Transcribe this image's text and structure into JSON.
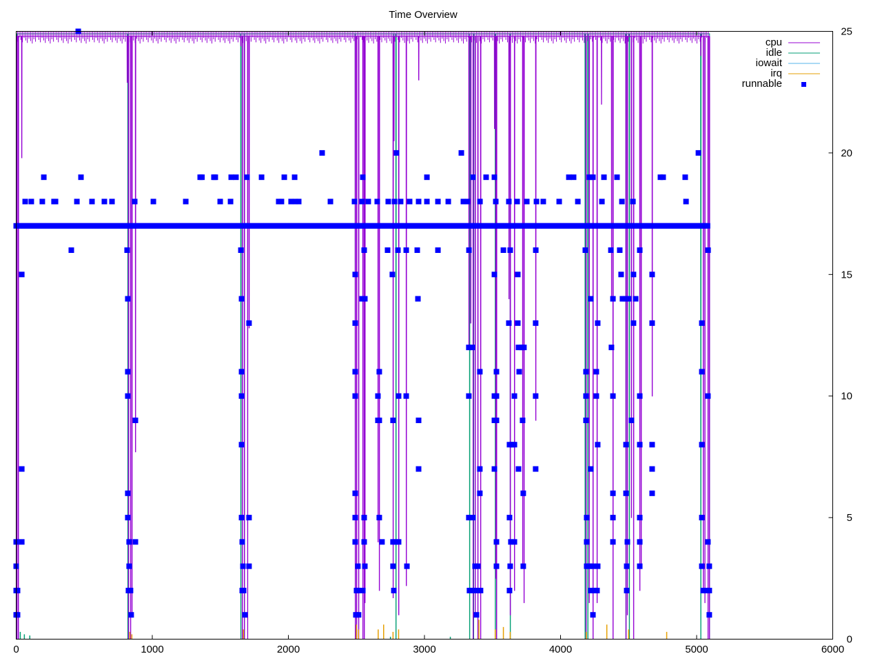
{
  "chart_data": {
    "type": "line",
    "title": "Time Overview",
    "xlim": [
      0,
      6000
    ],
    "ylim": [
      0,
      25
    ],
    "x_ticks": [
      "0",
      "1000",
      "2000",
      "3000",
      "4000",
      "5000",
      "6000"
    ],
    "y_ticks": [
      "0",
      "5",
      "10",
      "15",
      "20",
      "25"
    ],
    "y_axis_side": "right",
    "grid": false,
    "legend_placement": "top-right",
    "legend": [
      "cpu",
      "idle",
      "iowait",
      "irq",
      "runnable"
    ],
    "colors": {
      "cpu": "#9400d3",
      "idle": "#009e73",
      "iowait": "#56b4e9",
      "irq": "#e69f00",
      "runnable": "#0000ff"
    },
    "series": {
      "cpu": {
        "name": "cpu",
        "x_end": 5095,
        "typical": 24.8,
        "dips": [
          [
            5,
            0
          ],
          [
            15,
            0
          ],
          [
            40,
            19.8
          ],
          [
            815,
            22.9
          ],
          [
            825,
            0
          ],
          [
            840,
            0
          ],
          [
            850,
            1
          ],
          [
            876,
            7.7
          ],
          [
            1650,
            24.4
          ],
          [
            1661,
            0
          ],
          [
            1676,
            0
          ],
          [
            1700,
            0
          ],
          [
            1711,
            12.8
          ],
          [
            2491,
            0
          ],
          [
            2501,
            0
          ],
          [
            2516,
            0
          ],
          [
            2547,
            0
          ],
          [
            2557,
            0
          ],
          [
            2562,
            1.5
          ],
          [
            2658,
            4
          ],
          [
            2668,
            2
          ],
          [
            2769,
            1.7
          ],
          [
            2775,
            20.5
          ],
          [
            2810,
            1
          ],
          [
            2866,
            2.2
          ],
          [
            2957,
            23
          ],
          [
            3326,
            12
          ],
          [
            3340,
            13
          ],
          [
            3357,
            0
          ],
          [
            3372,
            1
          ],
          [
            3392,
            0
          ],
          [
            3412,
            0
          ],
          [
            3514,
            21
          ],
          [
            3524,
            2.5
          ],
          [
            3529,
            0
          ],
          [
            3620,
            14
          ],
          [
            3630,
            1
          ],
          [
            3661,
            2
          ],
          [
            3721,
            3
          ],
          [
            3731,
            1.5
          ],
          [
            3817,
            9
          ],
          [
            4187,
            0
          ],
          [
            4210,
            1.5
          ],
          [
            4238,
            0
          ],
          [
            4268,
            1.5
          ],
          [
            4300,
            22
          ],
          [
            4374,
            14
          ],
          [
            4385,
            0
          ],
          [
            4480,
            0
          ],
          [
            4490,
            1
          ],
          [
            4520,
            5
          ],
          [
            4536,
            0
          ],
          [
            4582,
            2
          ],
          [
            4592,
            3
          ],
          [
            4673,
            10
          ],
          [
            5030,
            24
          ],
          [
            5048,
            2
          ],
          [
            5060,
            1.5
          ],
          [
            5083,
            0
          ],
          [
            5093,
            0
          ]
        ]
      },
      "idle": {
        "name": "idle",
        "x_end": 5095,
        "typical": 24.9,
        "dips": [
          [
            3,
            0
          ],
          [
            820,
            0
          ],
          [
            1650,
            0
          ],
          [
            1676,
            0
          ],
          [
            2491,
            0
          ],
          [
            2770,
            19
          ],
          [
            2790,
            0
          ],
          [
            3331,
            0
          ],
          [
            3360,
            0
          ],
          [
            3520,
            0
          ],
          [
            3630,
            0
          ],
          [
            4180,
            0
          ],
          [
            4200,
            0
          ],
          [
            4480,
            0
          ],
          [
            4505,
            0
          ],
          [
            5030,
            0
          ]
        ]
      },
      "iowait": {
        "name": "iowait",
        "spikes": [
          [
            30,
            0.3
          ],
          [
            60,
            0.2
          ],
          [
            100,
            0.15
          ],
          [
            2750,
            0.1
          ],
          [
            3190,
            0.1
          ]
        ]
      },
      "irq": {
        "name": "irq",
        "spikes": [
          [
            835,
            0.3
          ],
          [
            850,
            0.2
          ],
          [
            1670,
            0.4
          ],
          [
            2500,
            0.6
          ],
          [
            2515,
            0.4
          ],
          [
            2660,
            0.4
          ],
          [
            2700,
            0.6
          ],
          [
            2769,
            0.3
          ],
          [
            2810,
            0.4
          ],
          [
            3400,
            0.8
          ],
          [
            3520,
            0.4
          ],
          [
            3580,
            0.5
          ],
          [
            3630,
            0.3
          ],
          [
            4190,
            0.3
          ],
          [
            4340,
            0.6
          ],
          [
            4500,
            0.4
          ],
          [
            4780,
            0.3
          ]
        ]
      },
      "runnable": {
        "name": "runnable",
        "continuous": {
          "y": 17,
          "x_range": [
            0,
            5090
          ]
        },
        "points_by_y": {
          "25": [
            456
          ],
          "20": [
            2248,
            2795,
            3271,
            5013
          ],
          "19": [
            203,
            476,
            1352,
            1365,
            1453,
            1463,
            1580,
            1615,
            1696,
            1803,
            1970,
            2046,
            2547,
            3018,
            3357,
            3453,
            3514,
            4061,
            4096,
            4213,
            4238,
            4319,
            4415,
            4734,
            4754,
            4916
          ],
          "18": [
            66,
            111,
            192,
            278,
            289,
            446,
            557,
            648,
            704,
            871,
            1008,
            1246,
            1499,
            1575,
            1929,
            1949,
            2020,
            2051,
            2076,
            2309,
            2486,
            2542,
            2587,
            2653,
            2734,
            2780,
            2825,
            2891,
            2957,
            3018,
            3099,
            3175,
            3286,
            3316,
            3408,
            3524,
            3620,
            3681,
            3752,
            3823,
            3873,
            3990,
            4127,
            4304,
            4451,
            4532,
            4922
          ],
          "16": [
            405,
            815,
            1651,
            2557,
            2729,
            2805,
            2866,
            2947,
            3099,
            3327,
            3580,
            3630,
            3818,
            4182,
            4370,
            4435,
            4582,
            5084
          ],
          "15": [
            41,
            2491,
            2764,
            3514,
            3686,
            4445,
            4536,
            4673
          ],
          "14": [
            820,
            1656,
            2542,
            2562,
            2952,
            4223,
            4385,
            4455,
            4476,
            4501,
            4552
          ],
          "13": [
            1711,
            2491,
            3620,
            3686,
            3817,
            4273,
            4536,
            4673,
            5038
          ],
          "12": [
            3326,
            3352,
            3691,
            3716,
            3731,
            4374
          ],
          "11": [
            820,
            1656,
            2491,
            2668,
            3407,
            3529,
            3696,
            4187,
            4263,
            5038
          ],
          "10": [
            820,
            1656,
            2491,
            2658,
            2810,
            2866,
            3326,
            3514,
            3529,
            3661,
            3817,
            4187,
            4263,
            4385,
            4582,
            5083
          ],
          "9": [
            876,
            2658,
            2668,
            2769,
            2957,
            3514,
            3529,
            3721,
            4187,
            4521
          ],
          "8": [
            1656,
            3625,
            3645,
            3661,
            4273,
            4481,
            4582,
            4673,
            5038
          ],
          "7": [
            41,
            2957,
            3407,
            3514,
            3691,
            3817,
            4223,
            4673
          ],
          "6": [
            820,
            2491,
            3407,
            3726,
            4385,
            4481,
            4673
          ],
          "5": [
            820,
            1656,
            1711,
            2491,
            2557,
            2668,
            3326,
            3357,
            3625,
            4192,
            4385,
            4582,
            5038
          ],
          "4": [
            0,
            41,
            830,
            876,
            1661,
            2491,
            2557,
            2688,
            2769,
            2785,
            2810,
            3529,
            3635,
            3661,
            4192,
            4385,
            4491,
            4582,
            5083
          ],
          "3": [
            0,
            830,
            1666,
            1711,
            2511,
            2562,
            2769,
            2871,
            3372,
            3392,
            3529,
            3630,
            3726,
            4192,
            4212,
            4238,
            4273,
            4486,
            4582,
            5038,
            5093
          ],
          "2": [
            0,
            10,
            825,
            840,
            1661,
            1671,
            2501,
            2516,
            2547,
            2775,
            3331,
            3357,
            3377,
            3412,
            3625,
            4223,
            4248,
            4268,
            4486,
            5048,
            5068,
            5093
          ],
          "1": [
            0,
            10,
            845,
            1681,
            2496,
            2516,
            3382,
            4238,
            5093
          ]
        }
      }
    }
  }
}
